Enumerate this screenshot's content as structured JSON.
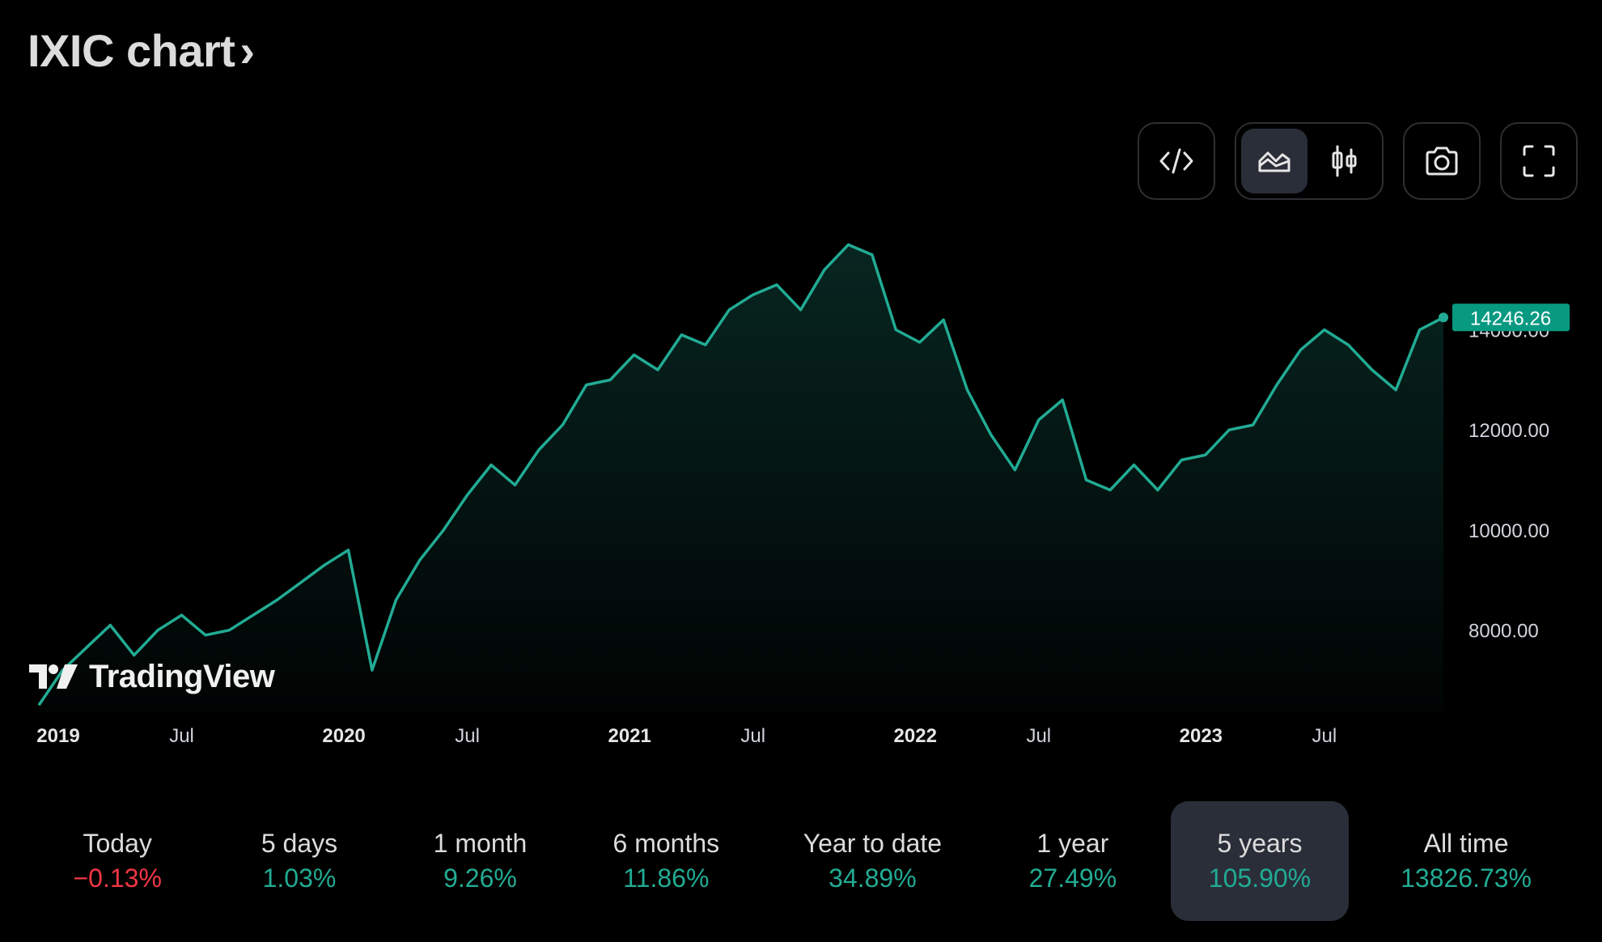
{
  "header": {
    "title": "IXIC chart",
    "chevron": "›"
  },
  "toolbar": {
    "embed_icon": "code-icon",
    "chart_types": [
      {
        "icon": "area-chart-icon",
        "active": true
      },
      {
        "icon": "candlestick-icon",
        "active": false
      }
    ],
    "snapshot_icon": "camera-icon",
    "fullscreen_icon": "fullscreen-icon"
  },
  "watermark": {
    "text": "TradingView",
    "icon": "tradingview-logo-icon"
  },
  "colors": {
    "line": "#22ab94",
    "positive": "#22ab94",
    "negative": "#f23645",
    "badge": "#089981",
    "active_bg": "#2a2e39"
  },
  "chart_data": {
    "type": "area",
    "title": "",
    "xlabel": "",
    "ylabel": "",
    "x_range": [
      "2019-01",
      "2023-12"
    ],
    "ylim": [
      6200,
      15900
    ],
    "y_ticks": [
      "8000.00",
      "10000.00",
      "12000.00",
      "14000.00"
    ],
    "x_ticks": [
      {
        "label": "2019",
        "bold": true
      },
      {
        "label": "Jul",
        "bold": false
      },
      {
        "label": "2020",
        "bold": true
      },
      {
        "label": "Jul",
        "bold": false
      },
      {
        "label": "2021",
        "bold": true
      },
      {
        "label": "Jul",
        "bold": false
      },
      {
        "label": "2022",
        "bold": true
      },
      {
        "label": "Jul",
        "bold": false
      },
      {
        "label": "2023",
        "bold": true
      },
      {
        "label": "Jul",
        "bold": false
      }
    ],
    "last_value_label": "14246.26",
    "series": [
      {
        "x": [
          "2019-01",
          "2019-02",
          "2019-03",
          "2019-04",
          "2019-05",
          "2019-06",
          "2019-07",
          "2019-08",
          "2019-09",
          "2019-10",
          "2019-11",
          "2019-12",
          "2020-01",
          "2020-02",
          "2020-03",
          "2020-04",
          "2020-05",
          "2020-06",
          "2020-07",
          "2020-08",
          "2020-09",
          "2020-10",
          "2020-11",
          "2020-12",
          "2021-01",
          "2021-02",
          "2021-03",
          "2021-04",
          "2021-05",
          "2021-06",
          "2021-07",
          "2021-08",
          "2021-09",
          "2021-10",
          "2021-11",
          "2021-12",
          "2022-01",
          "2022-02",
          "2022-03",
          "2022-04",
          "2022-05",
          "2022-06",
          "2022-07",
          "2022-08",
          "2022-09",
          "2022-10",
          "2022-11",
          "2022-12",
          "2023-01",
          "2023-02",
          "2023-03",
          "2023-04",
          "2023-05",
          "2023-06",
          "2023-07",
          "2023-08",
          "2023-09",
          "2023-10",
          "2023-11",
          "2023-12"
        ],
        "values": [
          6500,
          7200,
          7650,
          8100,
          7500,
          8000,
          8300,
          7900,
          8000,
          8300,
          8600,
          8950,
          9300,
          9600,
          7200,
          8600,
          9400,
          10000,
          10700,
          11300,
          10900,
          11600,
          12100,
          12900,
          13000,
          13500,
          13200,
          13900,
          13700,
          14400,
          14700,
          14900,
          14400,
          15200,
          15700,
          15500,
          14000,
          13750,
          14200,
          12800,
          11900,
          11200,
          12200,
          12600,
          11000,
          10800,
          11300,
          10800,
          11400,
          11500,
          12000,
          12100,
          12900,
          13600,
          14000,
          13700,
          13200,
          12800,
          14000,
          14246.26
        ]
      }
    ]
  },
  "periods": [
    {
      "label": "Today",
      "value": "−0.13%",
      "sign": "neg",
      "active": false
    },
    {
      "label": "5 days",
      "value": "1.03%",
      "sign": "pos",
      "active": false
    },
    {
      "label": "1 month",
      "value": "9.26%",
      "sign": "pos",
      "active": false
    },
    {
      "label": "6 months",
      "value": "11.86%",
      "sign": "pos",
      "active": false
    },
    {
      "label": "Year to date",
      "value": "34.89%",
      "sign": "pos",
      "active": false
    },
    {
      "label": "1 year",
      "value": "27.49%",
      "sign": "pos",
      "active": false
    },
    {
      "label": "5 years",
      "value": "105.90%",
      "sign": "pos",
      "active": true
    },
    {
      "label": "All time",
      "value": "13826.73%",
      "sign": "pos",
      "active": false
    }
  ]
}
